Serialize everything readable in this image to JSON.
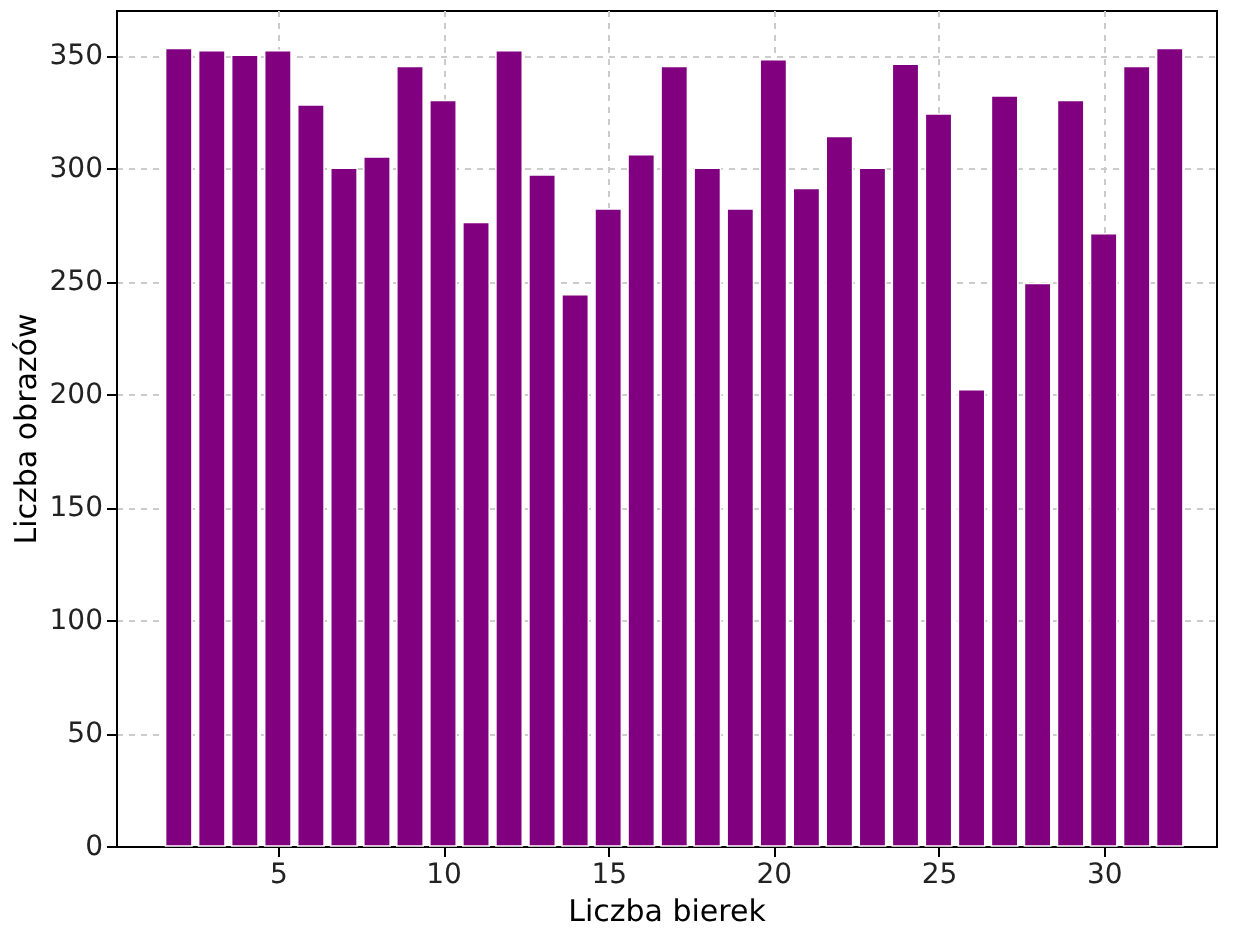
{
  "chart_data": {
    "type": "bar",
    "xlabel": "Liczba bierek",
    "ylabel": "Liczba obrazów",
    "x": [
      2,
      3,
      4,
      5,
      6,
      7,
      8,
      9,
      10,
      11,
      12,
      13,
      14,
      15,
      16,
      17,
      18,
      19,
      20,
      21,
      22,
      23,
      24,
      25,
      26,
      27,
      28,
      29,
      30,
      31,
      32
    ],
    "series": [
      {
        "color": "#800080",
        "values": [
          353,
          352,
          350,
          352,
          328,
          300,
          305,
          345,
          330,
          276,
          352,
          297,
          244,
          282,
          306,
          345,
          300,
          282,
          348,
          291,
          314,
          300,
          346,
          324,
          202,
          332,
          249,
          330,
          271,
          345,
          353
        ]
      }
    ],
    "xlim": [
      0.1,
      33.4
    ],
    "xticks": [
      5,
      10,
      15,
      20,
      25,
      30
    ],
    "ylim": [
      0,
      370
    ],
    "yticks": [
      0,
      50,
      100,
      150,
      200,
      250,
      300,
      350
    ],
    "grid": true
  }
}
